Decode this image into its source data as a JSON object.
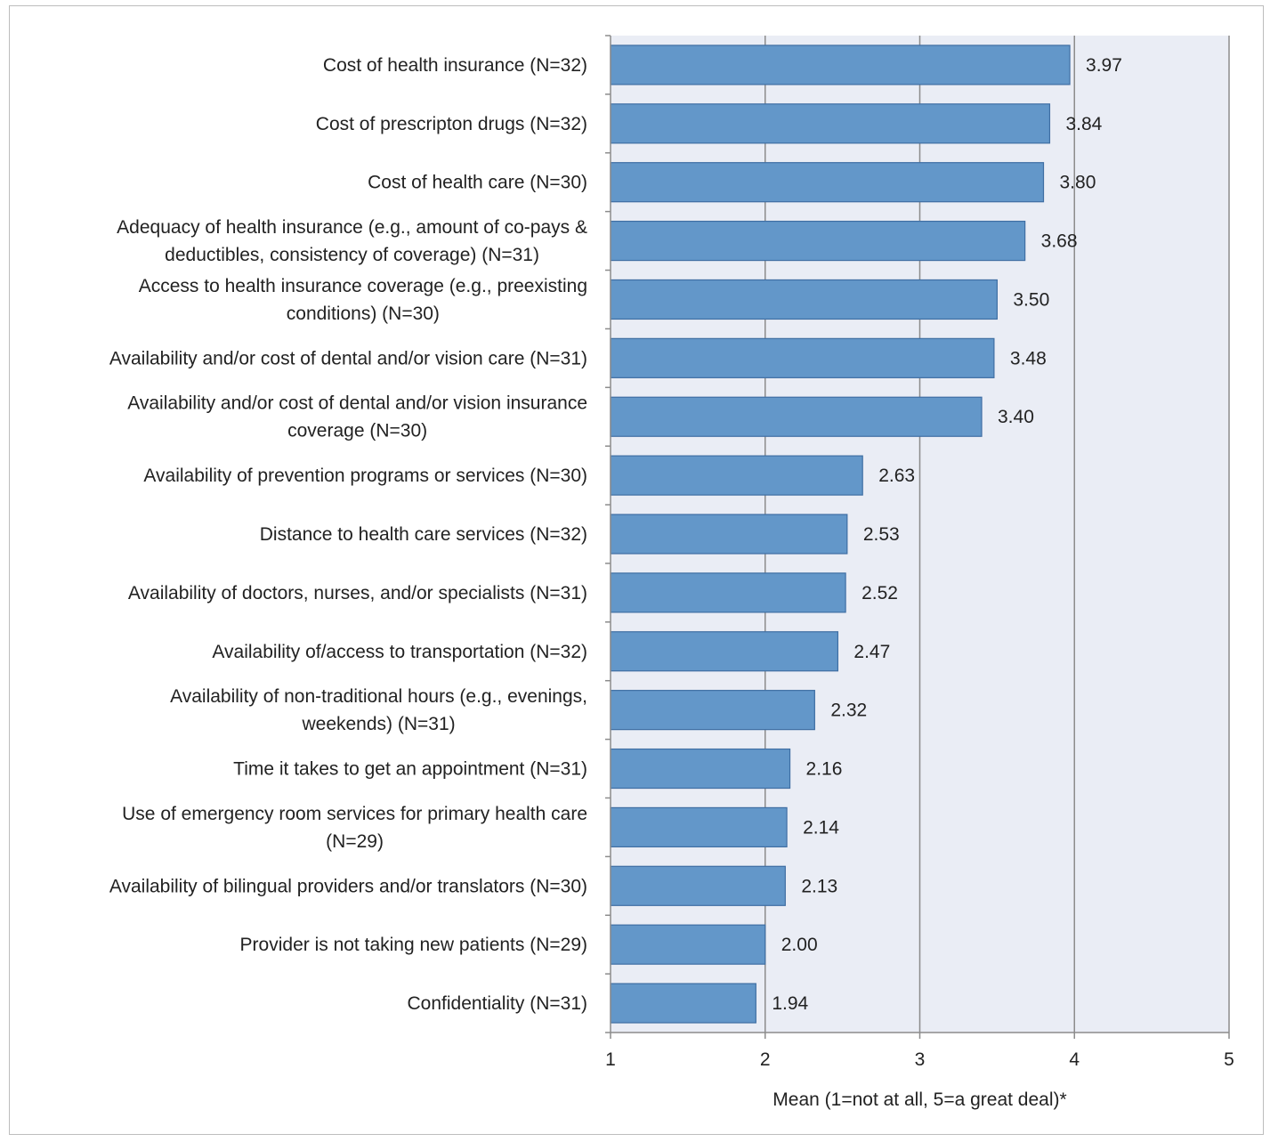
{
  "chart_data": {
    "type": "bar",
    "orientation": "horizontal",
    "title": "",
    "xlabel": "Mean (1=not at all, 5=a great deal)*",
    "ylabel": "",
    "xlim": [
      1,
      5
    ],
    "xticks": [
      "1",
      "2",
      "3",
      "4",
      "5"
    ],
    "grid": "vertical",
    "categories": [
      "Cost of health insurance (N=32)",
      "Cost of prescripton drugs (N=32)",
      "Cost of health care (N=30)",
      "Adequacy of health insurance (e.g., amount of co-pays & deductibles, consistency of coverage) (N=31)",
      "Access to health insurance coverage (e.g., preexisting conditions) (N=30)",
      "Availability and/or cost of dental and/or vision care (N=31)",
      "Availability and/or cost of dental and/or vision insurance coverage (N=30)",
      "Availability of prevention programs or services (N=30)",
      "Distance to health care services (N=32)",
      "Availability of doctors, nurses, and/or specialists (N=31)",
      "Availability of/access to transportation (N=32)",
      "Availability of non-traditional hours (e.g., evenings, weekends) (N=31)",
      "Time it takes to get an appointment (N=31)",
      "Use of emergency room services for primary health care (N=29)",
      "Availability of bilingual providers and/or translators (N=30)",
      "Provider is not taking new patients (N=29)",
      "Confidentiality (N=31)"
    ],
    "label_lines": [
      [
        "Cost of health insurance (N=32)"
      ],
      [
        "Cost of prescripton drugs (N=32)"
      ],
      [
        "Cost of health care (N=30)"
      ],
      [
        "Adequacy of health insurance (e.g., amount of co-pays &",
        "deductibles, consistency of coverage) (N=31)"
      ],
      [
        "Access to health insurance coverage (e.g., preexisting",
        "conditions) (N=30)"
      ],
      [
        "Availability and/or cost of dental and/or vision care (N=31)"
      ],
      [
        "Availability and/or cost of dental and/or vision insurance",
        "coverage (N=30)"
      ],
      [
        "Availability of prevention programs or services (N=30)"
      ],
      [
        "Distance to health care services (N=32)"
      ],
      [
        "Availability of doctors, nurses, and/or specialists (N=31)"
      ],
      [
        "Availability of/access to transportation (N=32)"
      ],
      [
        "Availability of non-traditional hours (e.g., evenings,",
        "weekends) (N=31)"
      ],
      [
        "Time it takes to get an appointment (N=31)"
      ],
      [
        "Use of emergency room services for primary health care",
        "(N=29)"
      ],
      [
        "Availability of bilingual providers and/or translators (N=30)"
      ],
      [
        "Provider is not taking new patients (N=29)"
      ],
      [
        "Confidentiality (N=31)"
      ]
    ],
    "values": [
      3.97,
      3.84,
      3.8,
      3.68,
      3.5,
      3.48,
      3.4,
      2.63,
      2.53,
      2.52,
      2.47,
      2.32,
      2.16,
      2.14,
      2.13,
      2.0,
      1.94
    ],
    "value_labels": [
      "3.97",
      "3.84",
      "3.80",
      "3.68",
      "3.50",
      "3.48",
      "3.40",
      "2.63",
      "2.53",
      "2.52",
      "2.47",
      "2.32",
      "2.16",
      "2.14",
      "2.13",
      "2.00",
      "1.94"
    ],
    "colors": {
      "bar_fill": "#6397c9",
      "bar_stroke": "#3f6ea3",
      "plot_bg": "#eaedf5",
      "grid": "#8c8c8c",
      "axis": "#8c8c8c"
    }
  }
}
